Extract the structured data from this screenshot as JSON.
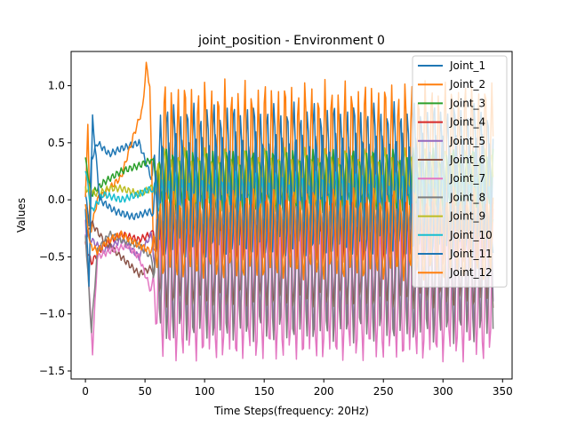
{
  "chart_data": {
    "type": "line",
    "title": "joint_position - Environment 0",
    "xlabel": "Time Steps(frequency: 20Hz)",
    "ylabel": "Values",
    "xlim": [
      -12,
      358
    ],
    "ylim": [
      -1.57,
      1.3
    ],
    "xticks": [
      0,
      50,
      100,
      150,
      200,
      250,
      300,
      350
    ],
    "yticks": [
      -1.5,
      -1.0,
      -0.5,
      0.0,
      0.5,
      1.0
    ],
    "ytick_labels": [
      "−1.5",
      "−1.0",
      "−0.5",
      "0.0",
      "0.5",
      "1.0"
    ],
    "grid": false,
    "legend_position": "top-right",
    "n_steps": 343,
    "settle_step": 55,
    "series": [
      {
        "name": "Joint_1",
        "color": "#1f77b4",
        "init": [
          [
            0,
            0.05
          ],
          [
            3,
            -0.2
          ],
          [
            5,
            0.35
          ],
          [
            10,
            0.5
          ],
          [
            20,
            0.4
          ],
          [
            30,
            0.45
          ],
          [
            45,
            0.5
          ],
          [
            55,
            0.2
          ]
        ],
        "mean": 0.25,
        "amp": 0.55,
        "period": 5.6,
        "phase": 0.0
      },
      {
        "name": "Joint_2",
        "color": "#ff7f0e",
        "init": [
          [
            0,
            0.0
          ],
          [
            2,
            0.68
          ],
          [
            4,
            -0.3
          ],
          [
            10,
            0.0
          ],
          [
            30,
            0.2
          ],
          [
            40,
            0.55
          ],
          [
            48,
            0.8
          ],
          [
            51,
            1.18
          ],
          [
            54,
            1.0
          ],
          [
            57,
            -0.4
          ]
        ],
        "mean": 0.15,
        "amp": 0.85,
        "period": 5.6,
        "phase": 2.2
      },
      {
        "name": "Joint_3",
        "color": "#2ca02c",
        "init": [
          [
            0,
            0.35
          ],
          [
            5,
            0.05
          ],
          [
            15,
            0.15
          ],
          [
            30,
            0.25
          ],
          [
            45,
            0.3
          ],
          [
            55,
            0.35
          ]
        ],
        "mean": 0.15,
        "amp": 0.25,
        "period": 5.6,
        "phase": 0.8
      },
      {
        "name": "Joint_4",
        "color": "#d62728",
        "init": [
          [
            0,
            -0.4
          ],
          [
            5,
            -0.55
          ],
          [
            15,
            -0.4
          ],
          [
            30,
            -0.3
          ],
          [
            45,
            -0.35
          ],
          [
            55,
            -0.3
          ]
        ],
        "mean": -0.3,
        "amp": 0.25,
        "period": 5.6,
        "phase": 1.5
      },
      {
        "name": "Joint_5",
        "color": "#9467bd",
        "init": [
          [
            0,
            -0.3
          ],
          [
            5,
            -0.35
          ],
          [
            15,
            -0.45
          ],
          [
            30,
            -0.35
          ],
          [
            45,
            -0.5
          ],
          [
            55,
            -0.3
          ]
        ],
        "mean": -0.6,
        "amp": 0.5,
        "period": 5.6,
        "phase": 3.2
      },
      {
        "name": "Joint_6",
        "color": "#8c564b",
        "init": [
          [
            0,
            -0.35
          ],
          [
            5,
            -0.2
          ],
          [
            15,
            -0.35
          ],
          [
            30,
            -0.5
          ],
          [
            45,
            -0.65
          ],
          [
            55,
            -0.6
          ]
        ],
        "mean": -0.55,
        "amp": 0.35,
        "period": 5.6,
        "phase": 4.0
      },
      {
        "name": "Joint_7",
        "color": "#e377c2",
        "init": [
          [
            0,
            -0.2
          ],
          [
            6,
            -1.33
          ],
          [
            10,
            -0.5
          ],
          [
            20,
            -0.45
          ],
          [
            35,
            -0.4
          ],
          [
            45,
            -0.5
          ],
          [
            55,
            -0.8
          ]
        ],
        "mean": -0.75,
        "amp": 0.62,
        "period": 5.6,
        "phase": 1.0
      },
      {
        "name": "Joint_8",
        "color": "#7f7f7f",
        "init": [
          [
            0,
            -0.3
          ],
          [
            5,
            -1.15
          ],
          [
            10,
            -0.45
          ],
          [
            20,
            -0.3
          ],
          [
            30,
            -0.35
          ],
          [
            45,
            -0.4
          ],
          [
            55,
            -0.5
          ]
        ],
        "mean": -0.6,
        "amp": 0.6,
        "period": 5.6,
        "phase": 3.6
      },
      {
        "name": "Joint_9",
        "color": "#bcbd22",
        "init": [
          [
            0,
            0.1
          ],
          [
            10,
            0.05
          ],
          [
            20,
            0.1
          ],
          [
            30,
            0.1
          ],
          [
            45,
            0.05
          ],
          [
            55,
            0.1
          ]
        ],
        "mean": 0.2,
        "amp": 0.2,
        "period": 5.6,
        "phase": 2.6
      },
      {
        "name": "Joint_10",
        "color": "#17becf",
        "init": [
          [
            0,
            0.28
          ],
          [
            5,
            -0.1
          ],
          [
            15,
            0.05
          ],
          [
            30,
            0.0
          ],
          [
            45,
            0.05
          ],
          [
            55,
            0.1
          ]
        ],
        "mean": 0.0,
        "amp": 0.2,
        "period": 5.6,
        "phase": 5.0
      },
      {
        "name": "Joint_11",
        "color": "#1f77b4",
        "init": [
          [
            0,
            -0.05
          ],
          [
            3,
            -0.75
          ],
          [
            6,
            0.72
          ],
          [
            12,
            0.0
          ],
          [
            25,
            -0.1
          ],
          [
            40,
            -0.15
          ],
          [
            55,
            -0.1
          ]
        ],
        "mean": 0.05,
        "amp": 0.5,
        "period": 5.6,
        "phase": 4.6
      },
      {
        "name": "Joint_12",
        "color": "#ff7f0e",
        "init": [
          [
            0,
            -0.05
          ],
          [
            4,
            -0.4
          ],
          [
            10,
            -0.45
          ],
          [
            20,
            -0.35
          ],
          [
            30,
            -0.3
          ],
          [
            45,
            -0.4
          ],
          [
            55,
            -0.45
          ]
        ],
        "mean": -0.3,
        "amp": 0.35,
        "period": 5.6,
        "phase": 0.4
      }
    ]
  }
}
